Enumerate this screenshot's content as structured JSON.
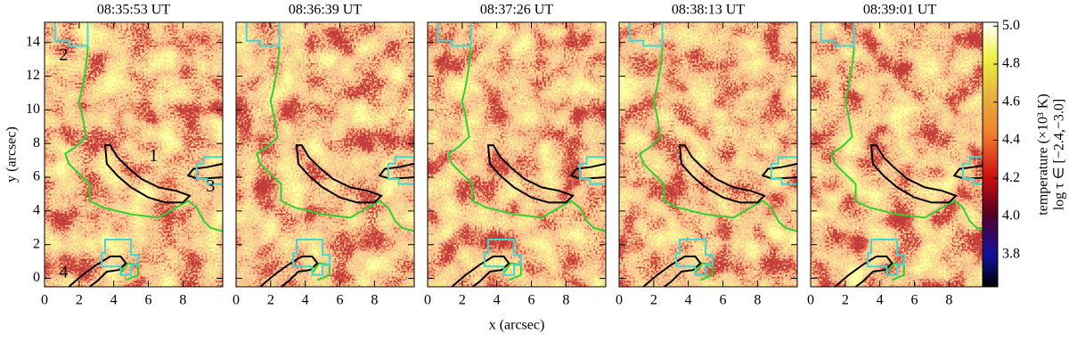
{
  "chart_data": [
    {
      "type": "map",
      "title": "08:35:53 UT",
      "xlim": [
        0,
        10.3
      ],
      "xticks": [
        0,
        2,
        4,
        6,
        8
      ],
      "ylim": [
        -0.5,
        15.2
      ],
      "yticks": [
        0,
        2,
        4,
        6,
        8,
        10,
        12,
        14
      ],
      "y_label": "y  (arcsec)",
      "annotations": [
        "1",
        "2",
        "3",
        "4"
      ]
    },
    {
      "type": "map",
      "title": "08:36:39 UT",
      "xlim": [
        0,
        10.3
      ],
      "xticks": [
        0,
        2,
        4,
        6,
        8
      ],
      "ylim": [
        -0.5,
        15.2
      ],
      "yticks": [
        0,
        2,
        4,
        6,
        8,
        10,
        12,
        14
      ]
    },
    {
      "type": "map",
      "title": "08:37:26 UT",
      "xlim": [
        0,
        10.3
      ],
      "xticks": [
        0,
        2,
        4,
        6,
        8
      ],
      "ylim": [
        -0.5,
        15.2
      ],
      "yticks": [
        0,
        2,
        4,
        6,
        8,
        10,
        12,
        14
      ],
      "x_label": "x  (arcsec)"
    },
    {
      "type": "map",
      "title": "08:38:13 UT",
      "xlim": [
        0,
        10.3
      ],
      "xticks": [
        0,
        2,
        4,
        6,
        8
      ],
      "ylim": [
        -0.5,
        15.2
      ],
      "yticks": [
        0,
        2,
        4,
        6,
        8,
        10,
        12,
        14
      ]
    },
    {
      "type": "map",
      "title": "08:39:01 UT",
      "xlim": [
        0,
        10.3
      ],
      "xticks": [
        0,
        2,
        4,
        6,
        8
      ],
      "ylim": [
        -0.5,
        15.2
      ],
      "yticks": [
        0,
        2,
        4,
        6,
        8,
        10,
        12,
        14
      ]
    },
    {
      "type": "colorbar",
      "label": "temperature (×10³ K)",
      "sublabel": "log τ ∈ [−2.4,−3.0]",
      "ylim": [
        3.63,
        5.02
      ],
      "yticks": [
        3.8,
        {
          "value": 4.0,
          "label": "4.0"
        },
        4.2,
        4.4,
        4.6,
        4.8,
        {
          "value": 5.0,
          "label": "5.0"
        }
      ]
    }
  ]
}
